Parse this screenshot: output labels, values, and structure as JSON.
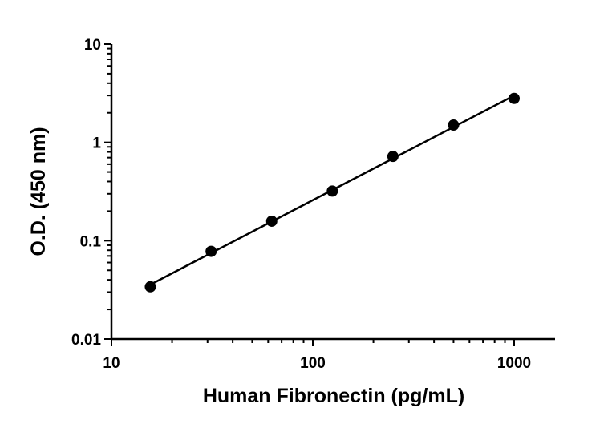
{
  "chart_data": {
    "type": "scatter",
    "xlabel": "Human Fibronectin (pg/mL)",
    "ylabel": "O.D. (450 nm)",
    "xscale": "log",
    "yscale": "log",
    "xlim": [
      10,
      1600
    ],
    "ylim": [
      0.01,
      10
    ],
    "x_ticks": [
      10,
      100,
      1000
    ],
    "x_tick_labels": [
      "10",
      "100",
      "1000"
    ],
    "y_ticks": [
      0.01,
      0.1,
      1,
      10
    ],
    "y_tick_labels": [
      "0.01",
      "0.1",
      "1",
      "10"
    ],
    "grid": false,
    "fit_line": true,
    "series": [
      {
        "x": [
          15.6,
          31.25,
          62.5,
          125,
          250,
          500,
          1000
        ],
        "y": [
          0.034,
          0.078,
          0.158,
          0.32,
          0.72,
          1.5,
          2.8
        ]
      }
    ]
  }
}
